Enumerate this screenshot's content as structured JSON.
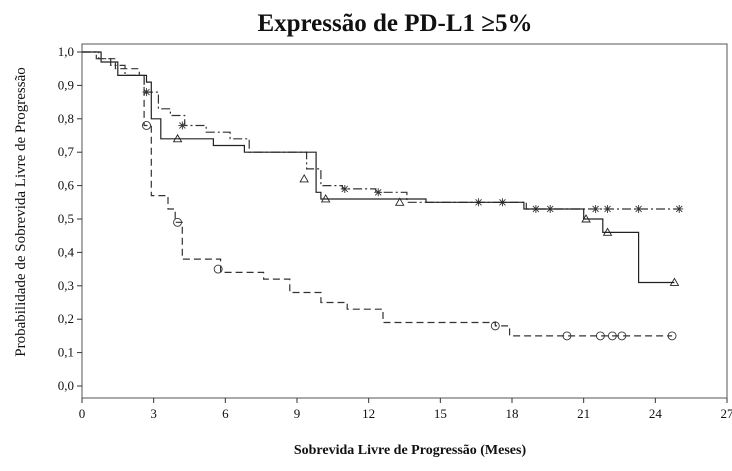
{
  "chart_data": {
    "type": "line",
    "title": "Expressão de PD-L1 ≥5%",
    "xlabel": "Sobrevida Livre de Progressão (Meses)",
    "ylabel": "Probabilidade de Sobrevida Livre de Progressão",
    "xlim": [
      0,
      27
    ],
    "ylim": [
      0.0,
      1.0
    ],
    "x_ticks": [
      0,
      3,
      6,
      9,
      12,
      15,
      18,
      21,
      24,
      27
    ],
    "x_tick_labels": [
      "0",
      "3",
      "6",
      "9",
      "12",
      "15",
      "18",
      "21",
      "24",
      "27"
    ],
    "y_ticks": [
      0.0,
      0.1,
      0.2,
      0.3,
      0.4,
      0.5,
      0.6,
      0.7,
      0.8,
      0.9,
      1.0
    ],
    "y_tick_labels": [
      "0,0",
      "0,1",
      "0,2",
      "0,3",
      "0,4",
      "0,5",
      "0,6",
      "0,7",
      "0,8",
      "0,9",
      "1,0"
    ],
    "grid": false,
    "legend": "none",
    "series": [
      {
        "line_style": "dash-dot",
        "censor_marker": "star",
        "color": "#333333",
        "steps": [
          [
            0,
            1.0
          ],
          [
            0.6,
            0.98
          ],
          [
            1.2,
            0.96
          ],
          [
            1.8,
            0.93
          ],
          [
            2.6,
            0.88
          ],
          [
            3.2,
            0.83
          ],
          [
            3.7,
            0.81
          ],
          [
            4.3,
            0.78
          ],
          [
            5.2,
            0.76
          ],
          [
            6.2,
            0.74
          ],
          [
            7.0,
            0.7
          ],
          [
            9.4,
            0.65
          ],
          [
            10.0,
            0.6
          ],
          [
            10.9,
            0.59
          ],
          [
            12.3,
            0.58
          ],
          [
            13.6,
            0.55
          ],
          [
            15.0,
            0.55
          ],
          [
            18.6,
            0.53
          ],
          [
            25.0,
            0.53
          ]
        ],
        "censored": [
          [
            2.7,
            0.88
          ],
          [
            4.2,
            0.78
          ],
          [
            11.0,
            0.59
          ],
          [
            12.4,
            0.58
          ],
          [
            16.6,
            0.55
          ],
          [
            17.6,
            0.55
          ],
          [
            19.0,
            0.53
          ],
          [
            19.6,
            0.53
          ],
          [
            21.5,
            0.53
          ],
          [
            22.0,
            0.53
          ],
          [
            23.3,
            0.53
          ],
          [
            25.0,
            0.53
          ]
        ]
      },
      {
        "line_style": "solid",
        "censor_marker": "triangle",
        "color": "#222222",
        "steps": [
          [
            0,
            1.0
          ],
          [
            0.8,
            0.97
          ],
          [
            1.5,
            0.93
          ],
          [
            2.7,
            0.91
          ],
          [
            2.9,
            0.8
          ],
          [
            3.3,
            0.74
          ],
          [
            5.5,
            0.72
          ],
          [
            6.8,
            0.7
          ],
          [
            9.8,
            0.58
          ],
          [
            10.0,
            0.56
          ],
          [
            14.4,
            0.55
          ],
          [
            18.5,
            0.53
          ],
          [
            21.0,
            0.5
          ],
          [
            21.8,
            0.46
          ],
          [
            23.3,
            0.31
          ],
          [
            24.8,
            0.31
          ]
        ],
        "censored": [
          [
            4.0,
            0.74
          ],
          [
            9.3,
            0.62
          ],
          [
            10.2,
            0.56
          ],
          [
            13.3,
            0.55
          ],
          [
            21.1,
            0.5
          ],
          [
            22.0,
            0.46
          ],
          [
            24.8,
            0.31
          ]
        ]
      },
      {
        "line_style": "dashed",
        "censor_marker": "circle",
        "color": "#333333",
        "steps": [
          [
            0,
            1.0
          ],
          [
            0.7,
            0.98
          ],
          [
            1.4,
            0.95
          ],
          [
            2.4,
            0.93
          ],
          [
            2.6,
            0.78
          ],
          [
            2.9,
            0.57
          ],
          [
            3.6,
            0.53
          ],
          [
            3.9,
            0.49
          ],
          [
            4.2,
            0.38
          ],
          [
            5.8,
            0.34
          ],
          [
            7.6,
            0.32
          ],
          [
            8.7,
            0.28
          ],
          [
            10.0,
            0.25
          ],
          [
            11.1,
            0.23
          ],
          [
            12.6,
            0.19
          ],
          [
            17.3,
            0.18
          ],
          [
            17.9,
            0.15
          ],
          [
            24.7,
            0.15
          ]
        ],
        "censored": [
          [
            2.7,
            0.78
          ],
          [
            4.0,
            0.49
          ],
          [
            5.7,
            0.35
          ],
          [
            17.3,
            0.18
          ],
          [
            20.3,
            0.15
          ],
          [
            21.7,
            0.15
          ],
          [
            22.2,
            0.15
          ],
          [
            22.6,
            0.15
          ],
          [
            24.7,
            0.15
          ]
        ]
      }
    ]
  }
}
